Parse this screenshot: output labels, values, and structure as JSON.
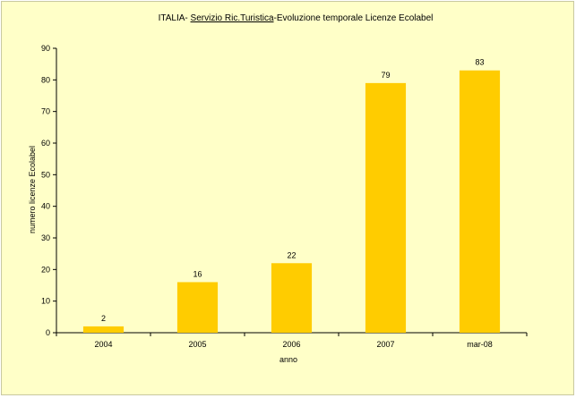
{
  "chart_data": {
    "type": "bar",
    "title_parts": [
      "ITALIA- ",
      "Servizio Ric.Turistica",
      "-Evoluzione temporale Licenze Ecolabel"
    ],
    "title": "ITALIA- Servizio Ric.Turistica-Evoluzione temporale Licenze Ecolabel",
    "xlabel": "anno",
    "ylabel": "numero licenze Ecolabel",
    "categories": [
      "2004",
      "2005",
      "2006",
      "2007",
      "mar-08"
    ],
    "values": [
      2,
      16,
      22,
      79,
      83
    ],
    "ylim": [
      0,
      90
    ],
    "yticks": [
      0,
      10,
      20,
      30,
      40,
      50,
      60,
      70,
      80,
      90
    ],
    "grid": false,
    "bar_color": "#ffcc00",
    "background_color": "#ffffc8"
  }
}
